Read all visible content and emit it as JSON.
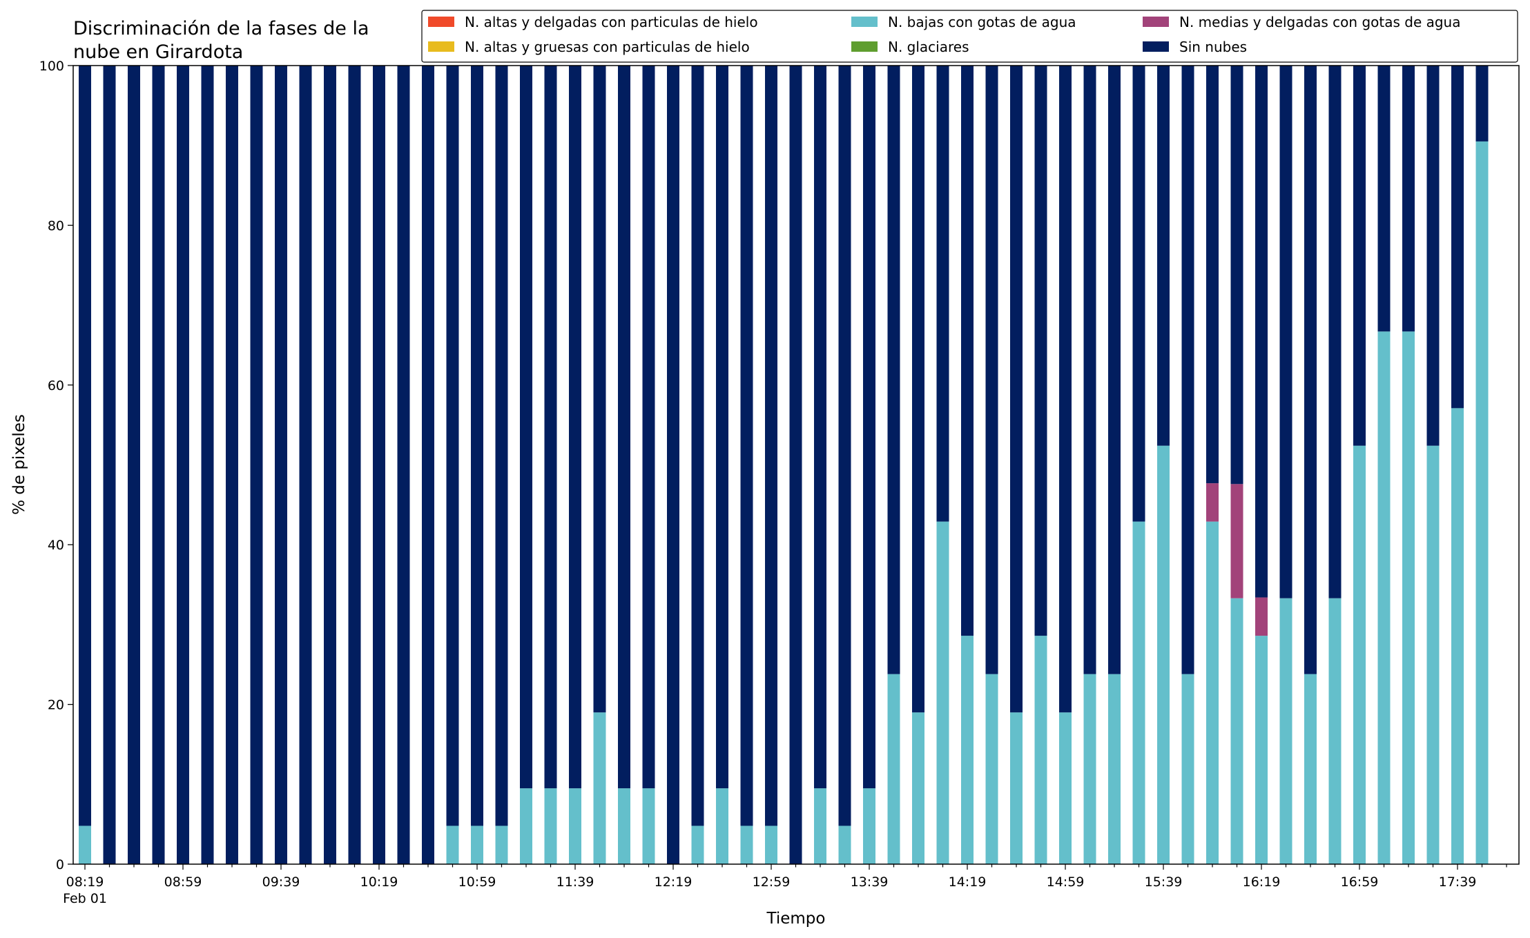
{
  "chart_data": {
    "type": "bar",
    "stacked": true,
    "title_lines": [
      "Discriminación de la fases de la",
      "nube en Girardota"
    ],
    "xlabel": "Tiempo",
    "ylabel": "% de pixeles",
    "ylim": [
      0,
      100
    ],
    "yticks": [
      0,
      20,
      40,
      60,
      80,
      100
    ],
    "date_label": "Feb 01",
    "grid": false,
    "legend_position": "top-right",
    "times": [
      "08:19",
      "08:29",
      "08:39",
      "08:49",
      "08:59",
      "09:09",
      "09:19",
      "09:29",
      "09:39",
      "09:49",
      "09:59",
      "10:09",
      "10:19",
      "10:29",
      "10:39",
      "10:49",
      "10:59",
      "11:09",
      "11:19",
      "11:29",
      "11:39",
      "11:49",
      "11:59",
      "12:09",
      "12:19",
      "12:29",
      "12:39",
      "12:49",
      "12:59",
      "13:09",
      "13:19",
      "13:29",
      "13:39",
      "13:49",
      "13:59",
      "14:09",
      "14:19",
      "14:29",
      "14:39",
      "14:49",
      "14:59",
      "15:09",
      "15:19",
      "15:29",
      "15:39",
      "15:49",
      "15:59",
      "16:09",
      "16:19",
      "16:29",
      "16:39",
      "16:49",
      "16:59",
      "17:09",
      "17:19",
      "17:29",
      "17:39",
      "17:49"
    ],
    "tick_labels": [
      "08:19",
      "08:59",
      "09:39",
      "10:19",
      "10:59",
      "11:39",
      "12:19",
      "12:59",
      "13:39",
      "14:19",
      "14:59",
      "15:39",
      "16:19",
      "16:59",
      "17:39"
    ],
    "series": [
      {
        "name": "N. altas y delgadas con particulas de hielo",
        "color": "#f04a2a",
        "values": [
          0,
          0,
          0,
          0,
          0,
          0,
          0,
          0,
          0,
          0,
          0,
          0,
          0,
          0,
          0,
          0,
          0,
          0,
          0,
          0,
          0,
          0,
          0,
          0,
          0,
          0,
          0,
          0,
          0,
          0,
          0,
          0,
          0,
          0,
          0,
          0,
          0,
          0,
          0,
          0,
          0,
          0,
          0,
          0,
          0,
          0,
          0,
          0,
          0,
          0,
          0,
          0,
          0,
          0,
          0,
          0,
          0,
          0
        ]
      },
      {
        "name": "N. altas y gruesas con particulas de hielo",
        "color": "#e8bb1e",
        "values": [
          0,
          0,
          0,
          0,
          0,
          0,
          0,
          0,
          0,
          0,
          0,
          0,
          0,
          0,
          0,
          0,
          0,
          0,
          0,
          0,
          0,
          0,
          0,
          0,
          0,
          0,
          0,
          0,
          0,
          0,
          0,
          0,
          0,
          0,
          0,
          0,
          0,
          0,
          0,
          0,
          0,
          0,
          0,
          0,
          0,
          0,
          0,
          0,
          0,
          0,
          0,
          0,
          0,
          0,
          0,
          0,
          0,
          0
        ]
      },
      {
        "name": "N. bajas con gotas de agua",
        "color": "#64bfcb",
        "values": [
          4.8,
          0,
          0,
          0,
          0,
          0,
          0,
          0,
          0,
          0,
          0,
          0,
          0,
          0,
          0,
          4.8,
          4.8,
          4.8,
          9.5,
          9.5,
          9.5,
          19.0,
          9.5,
          9.5,
          0,
          4.8,
          9.5,
          4.8,
          4.8,
          0,
          9.5,
          4.8,
          9.5,
          23.8,
          19.0,
          42.9,
          28.6,
          23.8,
          19.0,
          28.6,
          19.0,
          23.8,
          23.8,
          42.9,
          52.4,
          23.8,
          42.9,
          33.3,
          28.6,
          33.3,
          23.8,
          33.3,
          52.4,
          66.7,
          66.7,
          52.4,
          57.1,
          90.5
        ]
      },
      {
        "name": "N. glaciares",
        "color": "#5f9e2f",
        "values": [
          0,
          0,
          0,
          0,
          0,
          0,
          0,
          0,
          0,
          0,
          0,
          0,
          0,
          0,
          0,
          0,
          0,
          0,
          0,
          0,
          0,
          0,
          0,
          0,
          0,
          0,
          0,
          0,
          0,
          0,
          0,
          0,
          0,
          0,
          0,
          0,
          0,
          0,
          0,
          0,
          0,
          0,
          0,
          0,
          0,
          0,
          0,
          0,
          0,
          0,
          0,
          0,
          0,
          0,
          0,
          0,
          0,
          0
        ]
      },
      {
        "name": "N. medias y delgadas con gotas de agua",
        "color": "#a2437a",
        "values": [
          0,
          0,
          0,
          0,
          0,
          0,
          0,
          0,
          0,
          0,
          0,
          0,
          0,
          0,
          0,
          0,
          0,
          0,
          0,
          0,
          0,
          0,
          0,
          0,
          0,
          0,
          0,
          0,
          0,
          0,
          0,
          0,
          0,
          0,
          0,
          0,
          0,
          0,
          0,
          0,
          0,
          0,
          0,
          0,
          0,
          0,
          4.8,
          14.3,
          4.8,
          0,
          0,
          0,
          0,
          0,
          0,
          0,
          0,
          0
        ]
      },
      {
        "name": "Sin nubes",
        "color": "#021e5f",
        "values": [
          95.2,
          100,
          100,
          100,
          100,
          100,
          100,
          100,
          100,
          100,
          100,
          100,
          100,
          100,
          100,
          95.2,
          95.2,
          95.2,
          90.5,
          90.5,
          90.5,
          81.0,
          90.5,
          90.5,
          100,
          95.2,
          90.5,
          95.2,
          95.2,
          100,
          90.5,
          95.2,
          90.5,
          76.2,
          81.0,
          57.1,
          71.4,
          76.2,
          81.0,
          71.4,
          81.0,
          76.2,
          76.2,
          57.1,
          47.6,
          76.2,
          52.3,
          52.4,
          66.6,
          66.7,
          76.2,
          66.7,
          47.6,
          33.3,
          33.3,
          47.6,
          42.9,
          9.5
        ]
      }
    ]
  }
}
